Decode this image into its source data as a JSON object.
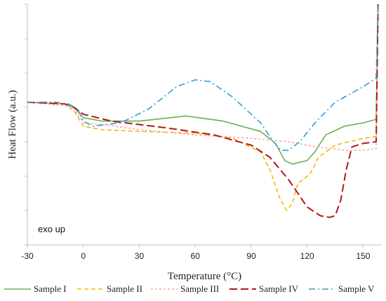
{
  "chart_data": {
    "type": "line",
    "title": "",
    "xlabel": "Temperature (°C)",
    "ylabel": "Heat Flow (a.u.)",
    "annotation": "exo up",
    "xlim": [
      -30,
      160
    ],
    "ylim": [
      0,
      7
    ],
    "x_ticks": [
      "-30",
      "0",
      "30",
      "60",
      "90",
      "120",
      "150"
    ],
    "x_tick_values": [
      -30,
      0,
      30,
      60,
      90,
      120,
      150
    ],
    "y_ticks_shown": false,
    "grid": false,
    "legend_position": "bottom",
    "series": [
      {
        "name": "Sample I",
        "color": "#6ab04c",
        "dash": "solid",
        "points": [
          [
            -30,
            4.15
          ],
          [
            -10,
            4.1
          ],
          [
            -5,
            4.0
          ],
          [
            0,
            3.7
          ],
          [
            10,
            3.6
          ],
          [
            30,
            3.6
          ],
          [
            55,
            3.75
          ],
          [
            75,
            3.6
          ],
          [
            95,
            3.3
          ],
          [
            103,
            2.95
          ],
          [
            108,
            2.45
          ],
          [
            112,
            2.35
          ],
          [
            120,
            2.45
          ],
          [
            124,
            2.7
          ],
          [
            130,
            3.2
          ],
          [
            140,
            3.45
          ],
          [
            150,
            3.55
          ],
          [
            157,
            3.65
          ],
          [
            158,
            7.0
          ]
        ]
      },
      {
        "name": "Sample II",
        "color": "#f5b800",
        "dash": "dash",
        "points": [
          [
            -30,
            4.15
          ],
          [
            -10,
            4.1
          ],
          [
            -5,
            3.9
          ],
          [
            0,
            3.45
          ],
          [
            10,
            3.35
          ],
          [
            30,
            3.3
          ],
          [
            60,
            3.25
          ],
          [
            80,
            3.1
          ],
          [
            95,
            2.7
          ],
          [
            100,
            2.2
          ],
          [
            105,
            1.4
          ],
          [
            109,
            1.0
          ],
          [
            112,
            1.2
          ],
          [
            115,
            1.8
          ],
          [
            118,
            1.9
          ],
          [
            122,
            2.1
          ],
          [
            126,
            2.55
          ],
          [
            135,
            2.9
          ],
          [
            150,
            3.1
          ],
          [
            157,
            3.15
          ],
          [
            158,
            7.0
          ]
        ]
      },
      {
        "name": "Sample III",
        "color": "#f4a8a8",
        "dash": "dot",
        "points": [
          [
            -30,
            4.15
          ],
          [
            -10,
            4.05
          ],
          [
            -5,
            3.95
          ],
          [
            0,
            3.55
          ],
          [
            10,
            3.5
          ],
          [
            30,
            3.35
          ],
          [
            60,
            3.2
          ],
          [
            90,
            3.1
          ],
          [
            110,
            3.0
          ],
          [
            125,
            2.85
          ],
          [
            140,
            2.75
          ],
          [
            150,
            2.75
          ],
          [
            157,
            2.8
          ],
          [
            158,
            6.9
          ]
        ]
      },
      {
        "name": "Sample IV",
        "color": "#b3161b",
        "dash": "longdash",
        "points": [
          [
            -30,
            4.15
          ],
          [
            -10,
            4.1
          ],
          [
            -5,
            4.0
          ],
          [
            0,
            3.8
          ],
          [
            15,
            3.6
          ],
          [
            45,
            3.4
          ],
          [
            70,
            3.2
          ],
          [
            90,
            2.9
          ],
          [
            100,
            2.55
          ],
          [
            110,
            1.9
          ],
          [
            115,
            1.5
          ],
          [
            120,
            1.1
          ],
          [
            127,
            0.85
          ],
          [
            132,
            0.8
          ],
          [
            135,
            0.85
          ],
          [
            138,
            1.3
          ],
          [
            141,
            2.2
          ],
          [
            144,
            2.85
          ],
          [
            150,
            2.95
          ],
          [
            157,
            3.0
          ],
          [
            158,
            7.0
          ]
        ]
      },
      {
        "name": "Sample V",
        "color": "#2f9fdc",
        "dash": "dashdot",
        "points": [
          [
            -30,
            4.15
          ],
          [
            -15,
            4.15
          ],
          [
            -8,
            4.1
          ],
          [
            -3,
            3.95
          ],
          [
            0,
            3.6
          ],
          [
            5,
            3.45
          ],
          [
            20,
            3.55
          ],
          [
            35,
            3.95
          ],
          [
            50,
            4.6
          ],
          [
            60,
            4.8
          ],
          [
            68,
            4.75
          ],
          [
            80,
            4.3
          ],
          [
            95,
            3.55
          ],
          [
            102,
            3.0
          ],
          [
            106,
            2.75
          ],
          [
            110,
            2.75
          ],
          [
            116,
            3.0
          ],
          [
            125,
            3.6
          ],
          [
            135,
            4.15
          ],
          [
            150,
            4.6
          ],
          [
            157,
            4.85
          ],
          [
            158,
            7.0
          ]
        ]
      }
    ]
  }
}
